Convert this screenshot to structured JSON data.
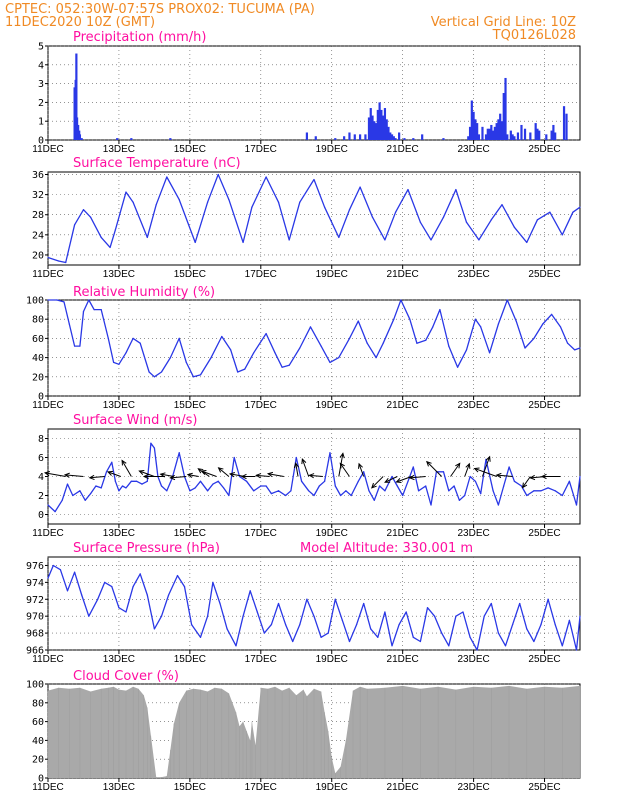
{
  "header": {
    "line1": "CPTEC:    052:30W-07:57S    PROX02: TUCUMA (PA)",
    "line2": "11DEC2020 10Z (GMT)",
    "grid_note": "Vertical Grid Line: 10Z",
    "code": "TQ0126L028"
  },
  "colors": {
    "series": "#2a38e6",
    "cloud": "#a9a9a9",
    "title": "#ff0ea0",
    "header": "#f08a24"
  },
  "x_ticks": [
    "11DEC",
    "13DEC",
    "15DEC",
    "17DEC",
    "19DEC",
    "21DEC",
    "23DEC",
    "25DEC"
  ],
  "x_tick_days": [
    0,
    2,
    4,
    6,
    8,
    10,
    12,
    14
  ],
  "x_range_days": [
    0,
    15
  ],
  "chart_data": [
    {
      "type": "bar",
      "title": "Precipitation (mm/h)",
      "ylim": [
        0,
        5
      ],
      "yticks": [
        0,
        1,
        2,
        3,
        4,
        5
      ],
      "x": [
        0.75,
        0.78,
        0.8,
        0.82,
        0.85,
        0.88,
        0.9,
        0.95,
        1.95,
        2.35,
        3.45,
        7.3,
        7.55,
        8.1,
        8.35,
        8.5,
        8.65,
        8.8,
        8.95,
        9.05,
        9.1,
        9.15,
        9.2,
        9.25,
        9.3,
        9.35,
        9.4,
        9.45,
        9.5,
        9.55,
        9.6,
        9.65,
        9.7,
        9.75,
        9.8,
        9.9,
        10.05,
        10.3,
        10.55,
        11.15,
        11.85,
        11.9,
        11.95,
        12.0,
        12.05,
        12.1,
        12.15,
        12.25,
        12.35,
        12.4,
        12.45,
        12.5,
        12.55,
        12.6,
        12.65,
        12.7,
        12.75,
        12.8,
        12.85,
        12.9,
        12.95,
        13.05,
        13.1,
        13.15,
        13.25,
        13.35,
        13.45,
        13.6,
        13.75,
        13.8,
        13.85,
        14.05,
        14.2,
        14.25,
        14.3,
        14.55,
        14.62
      ],
      "values": [
        2.8,
        3.2,
        4.6,
        1.2,
        0.8,
        0.5,
        0.3,
        0.1,
        0.1,
        0.1,
        0.1,
        0.4,
        0.2,
        0.1,
        0.2,
        0.4,
        0.3,
        0.3,
        0.3,
        1.2,
        1.7,
        1.3,
        1.0,
        0.9,
        1.6,
        2.0,
        1.6,
        1.3,
        1.7,
        1.1,
        0.7,
        0.4,
        0.3,
        0.2,
        0.1,
        0.4,
        0.1,
        0.1,
        0.3,
        0.1,
        0.2,
        0.7,
        2.1,
        1.5,
        1.1,
        0.9,
        0.3,
        0.7,
        0.3,
        0.6,
        0.6,
        0.8,
        0.5,
        0.7,
        0.9,
        1.1,
        1.4,
        1.0,
        2.5,
        3.3,
        0.3,
        0.5,
        0.3,
        0.2,
        0.4,
        0.8,
        0.6,
        0.4,
        0.9,
        0.6,
        0.5,
        0.3,
        0.5,
        0.8,
        0.4,
        1.8,
        1.4
      ]
    },
    {
      "type": "line",
      "title": "Surface Temperature (nC)",
      "ylim": [
        18,
        36.5
      ],
      "yticks": [
        20,
        24,
        28,
        32,
        36
      ],
      "x": [
        0,
        0.3,
        0.5,
        0.75,
        1.0,
        1.2,
        1.5,
        1.75,
        1.9,
        2.2,
        2.4,
        2.8,
        3.05,
        3.35,
        3.7,
        4.15,
        4.5,
        4.8,
        5.1,
        5.5,
        5.75,
        6.15,
        6.5,
        6.8,
        7.1,
        7.5,
        7.8,
        8.2,
        8.5,
        8.8,
        9.15,
        9.5,
        9.8,
        10.15,
        10.5,
        10.8,
        11.15,
        11.5,
        11.8,
        12.15,
        12.5,
        12.8,
        13.15,
        13.5,
        13.8,
        14.15,
        14.5,
        14.8,
        15.0
      ],
      "values": [
        19.5,
        18.8,
        18.5,
        26,
        29,
        27.5,
        23.5,
        21.5,
        25,
        32.5,
        30.5,
        23.5,
        30,
        35.5,
        31,
        22.5,
        30.5,
        36,
        31,
        22.5,
        29.5,
        35.5,
        30.5,
        23,
        30.5,
        35,
        29.5,
        23.5,
        29,
        33.5,
        27.5,
        23,
        28.5,
        33,
        26.5,
        23,
        27.5,
        33,
        26.5,
        23,
        27,
        30,
        25.5,
        22.5,
        27,
        28.5,
        24,
        28.5,
        29.5
      ]
    },
    {
      "type": "line",
      "title": "Relative Humidity (%)",
      "ylim": [
        0,
        100
      ],
      "yticks": [
        0,
        20,
        40,
        60,
        80,
        100
      ],
      "x": [
        0,
        0.25,
        0.45,
        0.6,
        0.75,
        0.9,
        1.0,
        1.15,
        1.3,
        1.5,
        1.7,
        1.85,
        2.0,
        2.2,
        2.4,
        2.6,
        2.85,
        3.0,
        3.2,
        3.45,
        3.7,
        3.9,
        4.1,
        4.3,
        4.6,
        4.9,
        5.15,
        5.35,
        5.55,
        5.8,
        6.15,
        6.4,
        6.6,
        6.8,
        7.1,
        7.4,
        7.7,
        7.95,
        8.2,
        8.5,
        8.75,
        9.0,
        9.25,
        9.45,
        9.75,
        9.95,
        10.2,
        10.4,
        10.65,
        10.85,
        11.05,
        11.3,
        11.55,
        11.8,
        12.05,
        12.2,
        12.45,
        12.7,
        12.95,
        13.2,
        13.45,
        13.7,
        13.95,
        14.2,
        14.45,
        14.65,
        14.85,
        15.0
      ],
      "values": [
        100,
        100,
        98,
        75,
        52,
        52,
        88,
        100,
        90,
        90,
        60,
        35,
        33,
        45,
        60,
        55,
        25,
        20,
        25,
        40,
        60,
        35,
        20,
        22,
        40,
        62,
        48,
        25,
        28,
        45,
        65,
        45,
        30,
        32,
        50,
        72,
        52,
        35,
        40,
        60,
        78,
        55,
        40,
        55,
        80,
        100,
        80,
        55,
        58,
        72,
        90,
        52,
        30,
        48,
        80,
        72,
        45,
        75,
        100,
        78,
        50,
        60,
        75,
        85,
        72,
        55,
        48,
        50
      ]
    },
    {
      "type": "line",
      "title": "Surface Wind (m/s)",
      "ylim": [
        -1,
        9
      ],
      "yticks": [
        0,
        2,
        4,
        6,
        8
      ],
      "x": [
        0,
        0.2,
        0.4,
        0.55,
        0.7,
        0.9,
        1.05,
        1.2,
        1.35,
        1.5,
        1.65,
        1.8,
        1.9,
        2.0,
        2.1,
        2.2,
        2.35,
        2.5,
        2.65,
        2.8,
        2.9,
        3.0,
        3.1,
        3.2,
        3.35,
        3.5,
        3.7,
        3.85,
        4.0,
        4.15,
        4.3,
        4.5,
        4.65,
        4.8,
        4.95,
        5.1,
        5.25,
        5.4,
        5.6,
        5.8,
        6.0,
        6.15,
        6.3,
        6.5,
        6.7,
        6.85,
        7.0,
        7.15,
        7.35,
        7.5,
        7.65,
        7.8,
        7.95,
        8.1,
        8.25,
        8.4,
        8.55,
        8.75,
        8.9,
        9.05,
        9.2,
        9.35,
        9.5,
        9.7,
        9.85,
        10.0,
        10.15,
        10.3,
        10.45,
        10.65,
        10.8,
        10.95,
        11.15,
        11.3,
        11.45,
        11.6,
        11.75,
        11.9,
        12.05,
        12.2,
        12.35,
        12.55,
        12.7,
        12.85,
        13.0,
        13.15,
        13.35,
        13.5,
        13.7,
        13.9,
        14.1,
        14.3,
        14.5,
        14.7,
        14.9,
        15.0
      ],
      "values": [
        1,
        0.3,
        1.5,
        3.2,
        2,
        2.5,
        1.5,
        2.2,
        3,
        2.8,
        4.5,
        5.5,
        3.5,
        2.5,
        3,
        2.8,
        3.5,
        3.5,
        3.2,
        3.5,
        7.5,
        7,
        4,
        3,
        2.5,
        3.8,
        6.5,
        4,
        2.5,
        2.8,
        3.5,
        2.5,
        3.2,
        3.5,
        2.8,
        2,
        6,
        4,
        3.5,
        2.5,
        3,
        3,
        2.2,
        2.5,
        2,
        2.5,
        6,
        3.5,
        2.5,
        2,
        3,
        3.5,
        6.5,
        3,
        2,
        2.5,
        2,
        3.5,
        4.5,
        2.5,
        1.5,
        3,
        2.5,
        4,
        3,
        2,
        3.5,
        5,
        2.5,
        3,
        1,
        4.5,
        4.5,
        2.5,
        3,
        1.5,
        2,
        4,
        3.5,
        2.2,
        5.8,
        2.5,
        1,
        3,
        5,
        3.5,
        3,
        2,
        2.5,
        2.5,
        2.8,
        2.5,
        2,
        3.5,
        1,
        4
      ],
      "vector_days": [
        0.5,
        1.0,
        1.6,
        2.05,
        2.35,
        3.0,
        3.3,
        3.55,
        3.9,
        4.25,
        4.55,
        4.75,
        5.1,
        5.55,
        5.85,
        6.25,
        6.65,
        7.05,
        7.35,
        7.75,
        8.2,
        8.5,
        8.9,
        9.45,
        9.85,
        10.25,
        10.65,
        11.1,
        11.35,
        11.75,
        12.25,
        12.65,
        13.1,
        13.6,
        14.05,
        14.45
      ],
      "vector_speeds": [
        3.0,
        2.5,
        1.8,
        1.5,
        2.5,
        2.0,
        3.0,
        1.5,
        2.0,
        1.0,
        1.5,
        2.0,
        1.5,
        1.8,
        1.5,
        1.5,
        2.0,
        1.5,
        2.5,
        1.5,
        3.5,
        2.0,
        1.5,
        2.0,
        1.5,
        2.0,
        2.0,
        3.0,
        2.0,
        1.5,
        3.0,
        3.5,
        2.0,
        1.5,
        2.0,
        2.5
      ],
      "vector_dirs_deg": [
        190,
        185,
        175,
        200,
        240,
        200,
        180,
        190,
        175,
        190,
        215,
        200,
        220,
        190,
        180,
        185,
        190,
        260,
        250,
        185,
        280,
        235,
        250,
        135,
        155,
        160,
        175,
        225,
        305,
        290,
        290,
        200,
        185,
        125,
        175,
        180
      ]
    },
    {
      "type": "line",
      "title": "Surface Pressure (hPa)",
      "subtitle": "Model Altitude: 330.001 m",
      "ylim": [
        966,
        977
      ],
      "yticks": [
        966,
        968,
        970,
        972,
        974,
        976
      ],
      "x": [
        0,
        0.15,
        0.35,
        0.55,
        0.75,
        0.95,
        1.15,
        1.4,
        1.6,
        1.8,
        2.0,
        2.2,
        2.4,
        2.6,
        2.8,
        3.0,
        3.2,
        3.4,
        3.65,
        3.85,
        4.05,
        4.3,
        4.5,
        4.65,
        4.85,
        5.05,
        5.3,
        5.5,
        5.7,
        5.9,
        6.1,
        6.3,
        6.5,
        6.7,
        6.9,
        7.1,
        7.3,
        7.5,
        7.7,
        7.9,
        8.1,
        8.3,
        8.5,
        8.7,
        8.9,
        9.1,
        9.3,
        9.5,
        9.7,
        9.9,
        10.1,
        10.3,
        10.5,
        10.7,
        10.9,
        11.1,
        11.3,
        11.5,
        11.7,
        11.9,
        12.1,
        12.3,
        12.5,
        12.7,
        12.9,
        13.1,
        13.3,
        13.5,
        13.7,
        13.9,
        14.1,
        14.3,
        14.5,
        14.7,
        14.9,
        15.0
      ],
      "values": [
        974.5,
        976,
        975.5,
        973,
        975.2,
        972.5,
        970,
        972,
        974,
        973.5,
        971,
        970.5,
        973.5,
        975,
        972.5,
        968.5,
        970,
        972.5,
        974.8,
        973.5,
        969,
        967.5,
        970,
        974,
        971.5,
        968.5,
        966.5,
        970,
        973,
        970.5,
        968,
        969,
        971.5,
        969,
        967,
        969,
        972,
        970,
        967.5,
        968,
        972,
        969.5,
        967,
        969,
        971.5,
        968.5,
        967.5,
        970.5,
        966.5,
        969,
        970.5,
        967.5,
        967,
        971,
        970,
        968,
        966.5,
        970,
        970.5,
        967.5,
        966,
        970,
        971.5,
        968,
        966.5,
        969,
        971.5,
        968.5,
        967,
        969,
        972,
        969,
        966.5,
        969.5,
        966,
        970
      ]
    },
    {
      "type": "area",
      "title": "Cloud Cover (%)",
      "ylim": [
        0,
        100
      ],
      "yticks": [
        0,
        20,
        40,
        60,
        80,
        100
      ],
      "x": [
        0,
        0.3,
        0.6,
        0.9,
        1.2,
        1.5,
        1.7,
        1.85,
        2.0,
        2.2,
        2.4,
        2.55,
        2.7,
        2.8,
        2.9,
        3.05,
        3.2,
        3.35,
        3.45,
        3.55,
        3.7,
        3.9,
        4.1,
        4.3,
        4.5,
        4.7,
        4.9,
        5.1,
        5.3,
        5.4,
        5.5,
        5.6,
        5.7,
        5.75,
        5.85,
        6.0,
        6.2,
        6.4,
        6.6,
        6.8,
        7.0,
        7.2,
        7.3,
        7.5,
        7.7,
        7.8,
        7.9,
        8.0,
        8.1,
        8.25,
        8.4,
        8.6,
        8.8,
        9.0,
        9.5,
        10.0,
        10.5,
        11.0,
        11.5,
        12.0,
        12.5,
        13.0,
        13.5,
        14.0,
        14.5,
        15.0
      ],
      "values": [
        93,
        96,
        95,
        96,
        92,
        95,
        96,
        97,
        94,
        93,
        97,
        95,
        88,
        75,
        45,
        1,
        1,
        2,
        30,
        58,
        80,
        93,
        95,
        94,
        92,
        96,
        95,
        90,
        70,
        55,
        60,
        50,
        40,
        60,
        35,
        96,
        95,
        97,
        93,
        96,
        88,
        94,
        87,
        95,
        92,
        70,
        50,
        22,
        5,
        12,
        40,
        93,
        97,
        95,
        96,
        98,
        95,
        97,
        94,
        97,
        96,
        98,
        95,
        97,
        96,
        98
      ]
    }
  ]
}
